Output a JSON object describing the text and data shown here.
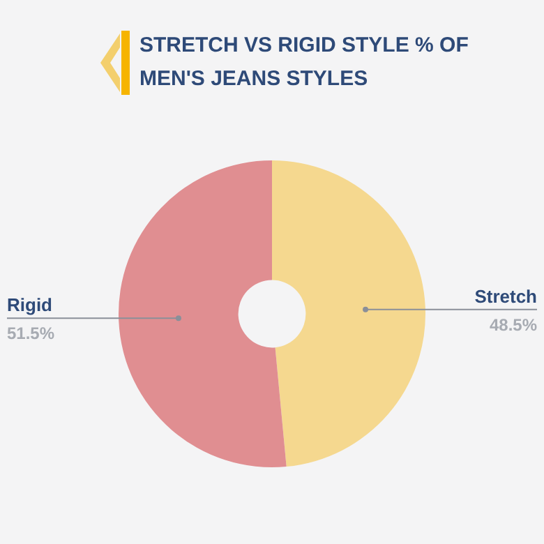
{
  "chart_data": {
    "type": "donut",
    "title": "STRETCH VS RIGID STYLE % OF MEN'S JEANS STYLES",
    "categories": [
      "Stretch",
      "Rigid"
    ],
    "values": [
      48.5,
      51.5
    ],
    "colors": [
      "#f5d88f",
      "#e08e91"
    ],
    "value_labels": [
      "48.5%",
      "51.5%"
    ],
    "legend": false
  }
}
